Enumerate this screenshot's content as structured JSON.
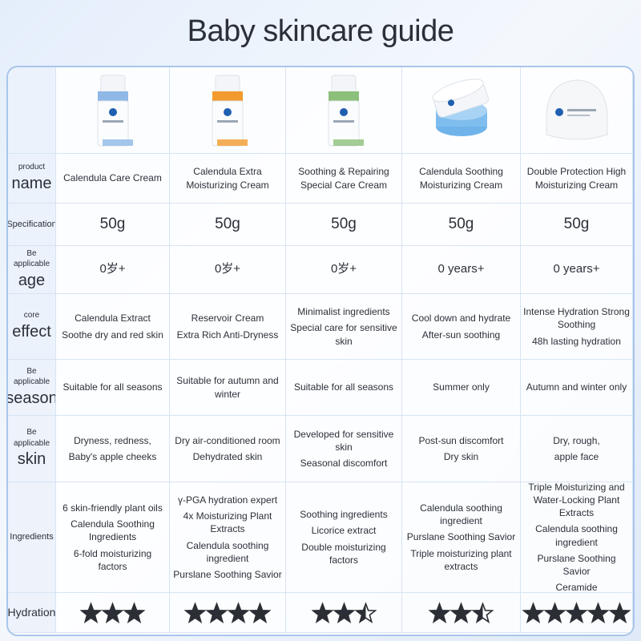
{
  "title": "Baby skincare guide",
  "rows": [
    {
      "label": [
        "product",
        "name"
      ],
      "cells": [
        [
          "Calendula Care Cream"
        ],
        [
          "Calendula Extra Moisturizing Cream"
        ],
        [
          "Soothing & Repairing Special Care Cream"
        ],
        [
          "Calendula Soothing Moisturizing Cream"
        ],
        [
          "Double Protection High Moisturizing Cream"
        ]
      ]
    },
    {
      "label": [
        "Specification"
      ],
      "cells": [
        [
          "50g"
        ],
        [
          "50g"
        ],
        [
          "50g"
        ],
        [
          "50g"
        ],
        [
          "50g"
        ]
      ]
    },
    {
      "label": [
        "Be applicable",
        "age"
      ],
      "cells": [
        [
          "0岁+"
        ],
        [
          "0岁+"
        ],
        [
          "0岁+"
        ],
        [
          "0 years+"
        ],
        [
          "0 years+"
        ]
      ]
    },
    {
      "label": [
        "core",
        "effect"
      ],
      "cells": [
        [
          "Calendula Extract",
          "Soothe dry and red skin"
        ],
        [
          "Reservoir Cream",
          "Extra Rich Anti-Dryness"
        ],
        [
          "Minimalist ingredients",
          "Special care for sensitive skin"
        ],
        [
          "Cool down and hydrate",
          "After-sun soothing"
        ],
        [
          "Intense Hydration Strong Soothing",
          "48h lasting hydration"
        ]
      ]
    },
    {
      "label": [
        "Be applicable",
        "season"
      ],
      "cells": [
        [
          "Suitable for all seasons"
        ],
        [
          "Suitable for autumn and winter"
        ],
        [
          "Suitable for all seasons"
        ],
        [
          "Summer only"
        ],
        [
          "Autumn and winter only"
        ]
      ]
    },
    {
      "label": [
        "Be applicable",
        "skin"
      ],
      "cells": [
        [
          "Dryness, redness,",
          "Baby's apple cheeks"
        ],
        [
          "Dry air-conditioned room",
          "Dehydrated skin"
        ],
        [
          "Developed for sensitive skin",
          "Seasonal discomfort"
        ],
        [
          "Post-sun discomfort",
          "Dry skin"
        ],
        [
          "Dry, rough,",
          "apple face"
        ]
      ]
    },
    {
      "label": [
        "Ingredients"
      ],
      "cells": [
        [
          "6 skin-friendly plant oils",
          "Calendula Soothing Ingredients",
          "6-fold moisturizing factors"
        ],
        [
          "γ-PGA hydration expert",
          "4x Moisturizing Plant Extracts",
          "Calendula soothing ingredient",
          "Purslane Soothing Savior"
        ],
        [
          "Soothing ingredients",
          "Licorice extract",
          "Double moisturizing factors"
        ],
        [
          "Calendula soothing ingredient",
          "Purslane Soothing Savior",
          "Triple moisturizing plant extracts"
        ],
        [
          "Triple Moisturizing and Water-Locking Plant Extracts",
          "Calendula soothing ingredient",
          "Purslane Soothing Savior",
          "Ceramide"
        ]
      ]
    }
  ],
  "hydration": {
    "label": "Hydration",
    "ratings": [
      3,
      4,
      2.5,
      2.5,
      5
    ]
  }
}
